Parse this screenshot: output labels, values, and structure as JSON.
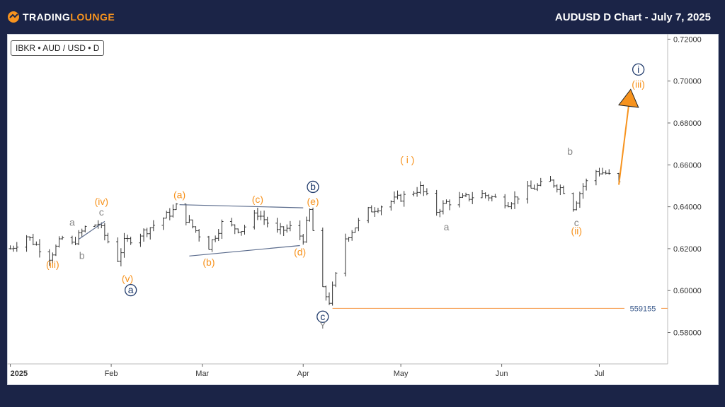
{
  "header": {
    "logo_part1": "TRADING",
    "logo_part2": "LOUNGE",
    "title": "AUDUSD D Chart - July 7, 2025"
  },
  "symbol_label": "IBKR • AUD / USD • D",
  "colors": {
    "background": "#1b2447",
    "orange": "#f7931e",
    "navy": "#1f3a6b",
    "gray": "#888888",
    "channel": "#5a6b8c",
    "candle": "#333333"
  },
  "chart_data": {
    "type": "candlestick",
    "title": "AUDUSD D Chart - July 7, 2025",
    "xlabel": "",
    "ylabel": "",
    "ylim": [
      0.565,
      0.7225
    ],
    "y_ticks": [
      "0.72000",
      "0.70000",
      "0.68000",
      "0.66000",
      "0.64000",
      "0.62000",
      "0.60000",
      "0.58000"
    ],
    "x_ticks": [
      "2025",
      "Feb",
      "Mar",
      "Apr",
      "May",
      "Jun",
      "Jul"
    ],
    "price_path": [
      {
        "date": "2025-01-01",
        "value": 0.62
      },
      {
        "date": "2025-01-06",
        "value": 0.626
      },
      {
        "date": "2025-01-13",
        "value": 0.616
      },
      {
        "date": "2025-01-17",
        "value": 0.625
      },
      {
        "date": "2025-01-20",
        "value": 0.622
      },
      {
        "date": "2025-01-24",
        "value": 0.63
      },
      {
        "date": "2025-01-28",
        "value": 0.632
      },
      {
        "date": "2025-02-03",
        "value": 0.615
      },
      {
        "date": "2025-02-05",
        "value": 0.623
      },
      {
        "date": "2025-02-11",
        "value": 0.628
      },
      {
        "date": "2025-02-20",
        "value": 0.638
      },
      {
        "date": "2025-02-21",
        "value": 0.64
      },
      {
        "date": "2025-03-03",
        "value": 0.621
      },
      {
        "date": "2025-03-07",
        "value": 0.632
      },
      {
        "date": "2025-03-13",
        "value": 0.629
      },
      {
        "date": "2025-03-18",
        "value": 0.637
      },
      {
        "date": "2025-03-24",
        "value": 0.628
      },
      {
        "date": "2025-03-28",
        "value": 0.63
      },
      {
        "date": "2025-04-01",
        "value": 0.625
      },
      {
        "date": "2025-04-03",
        "value": 0.638
      },
      {
        "date": "2025-04-07",
        "value": 0.6
      },
      {
        "date": "2025-04-09",
        "value": 0.595
      },
      {
        "date": "2025-04-14",
        "value": 0.625
      },
      {
        "date": "2025-04-21",
        "value": 0.638
      },
      {
        "date": "2025-05-02",
        "value": 0.645
      },
      {
        "date": "2025-05-07",
        "value": 0.649
      },
      {
        "date": "2025-05-12",
        "value": 0.638
      },
      {
        "date": "2025-05-15",
        "value": 0.642
      },
      {
        "date": "2025-05-26",
        "value": 0.646
      },
      {
        "date": "2025-06-03",
        "value": 0.642
      },
      {
        "date": "2025-06-09",
        "value": 0.648
      },
      {
        "date": "2025-06-16",
        "value": 0.652
      },
      {
        "date": "2025-06-20",
        "value": 0.648
      },
      {
        "date": "2025-06-23",
        "value": 0.64
      },
      {
        "date": "2025-06-26",
        "value": 0.65
      },
      {
        "date": "2025-06-30",
        "value": 0.657
      },
      {
        "date": "2025-07-03",
        "value": 0.656
      },
      {
        "date": "2025-07-07",
        "value": 0.651
      }
    ],
    "projection_arrow": {
      "from": {
        "date": "2025-07-07",
        "value": 0.6505
      },
      "to": {
        "date": "2025-07-10",
        "value": 0.688
      }
    },
    "horizontal_level": {
      "value": 0.5915,
      "label": "559155",
      "from_date": "2025-04-10"
    },
    "channel_lines": [
      {
        "from": {
          "date": "2025-01-22",
          "value": 0.6245
        },
        "to": {
          "date": "2025-01-30",
          "value": 0.633
        }
      },
      {
        "date_from": "2025-02-22",
        "value_from": 0.641,
        "date_to": "2025-04-01",
        "value_to": 0.6395
      },
      {
        "date_from": "2025-02-25",
        "value_from": 0.6165,
        "date_to": "2025-03-31",
        "value_to": 0.6215
      }
    ],
    "wave_labels": [
      {
        "text": "(iii)",
        "date": "2025-01-14",
        "value": 0.6125,
        "style": "orange"
      },
      {
        "text": "a",
        "date": "2025-01-20",
        "value": 0.6327,
        "style": "gray"
      },
      {
        "text": "b",
        "date": "2025-01-23",
        "value": 0.6167,
        "style": "gray"
      },
      {
        "text": "c",
        "date": "2025-01-29",
        "value": 0.6375,
        "style": "gray"
      },
      {
        "text": "(iv)",
        "date": "2025-01-29",
        "value": 0.6425,
        "style": "orange"
      },
      {
        "text": "(v)",
        "date": "2025-02-06",
        "value": 0.6058,
        "style": "orange"
      },
      {
        "text": "a",
        "date": "2025-02-07",
        "value": 0.6002,
        "style": "navy-circle"
      },
      {
        "text": "(a)",
        "date": "2025-02-22",
        "value": 0.6458,
        "style": "orange"
      },
      {
        "text": "(b)",
        "date": "2025-03-03",
        "value": 0.6135,
        "style": "orange"
      },
      {
        "text": "(c)",
        "date": "2025-03-18",
        "value": 0.6435,
        "style": "orange"
      },
      {
        "text": "b",
        "date": "2025-04-04",
        "value": 0.6495,
        "style": "navy-circle"
      },
      {
        "text": "(e)",
        "date": "2025-04-04",
        "value": 0.6425,
        "style": "orange"
      },
      {
        "text": "(d)",
        "date": "2025-03-31",
        "value": 0.6185,
        "style": "orange"
      },
      {
        "text": "c",
        "date": "2025-04-07",
        "value": 0.5875,
        "style": "navy-circle"
      },
      {
        "text": "Y",
        "date": "2025-04-07",
        "value": 0.5835,
        "style": "gray"
      },
      {
        "text": "( i )",
        "date": "2025-05-03",
        "value": 0.6625,
        "style": "orange"
      },
      {
        "text": "a",
        "date": "2025-05-15",
        "value": 0.6305,
        "style": "gray"
      },
      {
        "text": "b",
        "date": "2025-06-22",
        "value": 0.6665,
        "style": "gray"
      },
      {
        "text": "c",
        "date": "2025-06-24",
        "value": 0.6325,
        "style": "gray"
      },
      {
        "text": "(ii)",
        "date": "2025-06-24",
        "value": 0.6285,
        "style": "orange"
      },
      {
        "text": "(iii)",
        "date": "2025-07-13",
        "value": 0.6985,
        "style": "orange"
      },
      {
        "text": "i",
        "date": "2025-07-13",
        "value": 0.7055,
        "style": "navy-circle"
      }
    ]
  }
}
